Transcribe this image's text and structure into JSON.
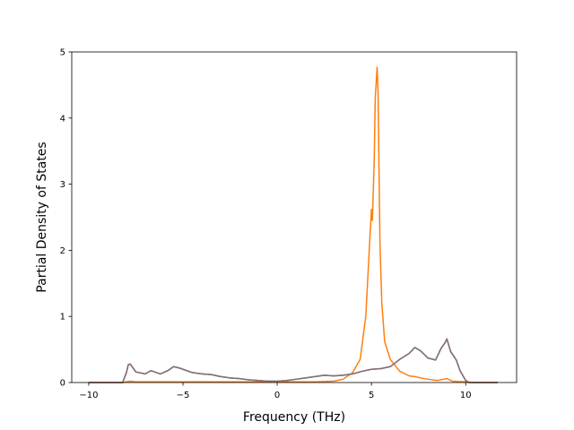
{
  "chart_data": {
    "type": "line",
    "title": "",
    "xlabel": "Frequency (THz)",
    "ylabel": "Partial Density of States",
    "xlim": [
      -10.9,
      12.7
    ],
    "ylim": [
      0,
      5
    ],
    "x_ticks": [
      -10,
      -5,
      0,
      5,
      10
    ],
    "x_tick_labels": [
      "−10",
      "−5",
      "0",
      "5",
      "10"
    ],
    "y_ticks": [
      0,
      1,
      2,
      3,
      4,
      5
    ],
    "y_tick_labels": [
      "0",
      "1",
      "2",
      "3",
      "4",
      "5"
    ],
    "grid": false,
    "legend": "none",
    "series": [
      {
        "color": "#1f77b4",
        "x": [
          -10.0,
          -8.2,
          -8.0,
          -7.9,
          -7.8,
          -7.5,
          -7.0,
          -6.7,
          -6.2,
          -5.8,
          -5.5,
          -5.2,
          -5.0,
          -4.5,
          -4.0,
          -3.5,
          -3.0,
          -2.5,
          -2.0,
          -1.5,
          -1.0,
          -0.5,
          0.0,
          0.5,
          1.0,
          1.5,
          2.0,
          2.5,
          3.0,
          3.5,
          4.0,
          4.5,
          5.0,
          5.5,
          6.0,
          6.5,
          7.0,
          7.3,
          7.6,
          8.0,
          8.4,
          8.7,
          8.9,
          9.0,
          9.2,
          9.5,
          9.7,
          10.0,
          10.2,
          11.7
        ],
        "y": [
          0,
          0,
          0.15,
          0.27,
          0.28,
          0.16,
          0.13,
          0.18,
          0.13,
          0.18,
          0.24,
          0.22,
          0.2,
          0.15,
          0.13,
          0.12,
          0.09,
          0.07,
          0.06,
          0.04,
          0.03,
          0.02,
          0.02,
          0.03,
          0.05,
          0.07,
          0.09,
          0.11,
          0.1,
          0.11,
          0.13,
          0.17,
          0.2,
          0.21,
          0.24,
          0.35,
          0.44,
          0.53,
          0.48,
          0.37,
          0.34,
          0.52,
          0.6,
          0.66,
          0.47,
          0.34,
          0.18,
          0.03,
          0,
          0
        ]
      },
      {
        "color": "#ff7f0e",
        "x": [
          -10.0,
          -8.2,
          -8.0,
          -7.8,
          -7.5,
          -7.0,
          -6.0,
          -5.0,
          -4.0,
          -3.0,
          -2.0,
          -1.0,
          0.0,
          1.0,
          2.0,
          3.0,
          3.5,
          4.0,
          4.4,
          4.7,
          4.9,
          5.0,
          5.05,
          5.15,
          5.2,
          5.3,
          5.35,
          5.45,
          5.55,
          5.7,
          6.0,
          6.5,
          7.0,
          7.3,
          7.6,
          8.0,
          8.5,
          9.0,
          9.3,
          10.0,
          10.2,
          11.7
        ],
        "y": [
          0,
          0,
          0.01,
          0.02,
          0.01,
          0.01,
          0.01,
          0.01,
          0.01,
          0.01,
          0.01,
          0.01,
          0.01,
          0.01,
          0.01,
          0.02,
          0.05,
          0.15,
          0.35,
          1.0,
          2.1,
          2.62,
          2.45,
          3.4,
          4.3,
          4.77,
          4.4,
          2.1,
          1.2,
          0.62,
          0.35,
          0.17,
          0.1,
          0.09,
          0.07,
          0.05,
          0.03,
          0.06,
          0.02,
          0.01,
          0,
          0
        ]
      },
      {
        "color": "#8c6d6e",
        "x": [
          -10.0,
          -8.2,
          -8.0,
          -7.9,
          -7.8,
          -7.5,
          -7.0,
          -6.7,
          -6.2,
          -5.8,
          -5.5,
          -5.2,
          -5.0,
          -4.5,
          -4.0,
          -3.5,
          -3.0,
          -2.5,
          -2.0,
          -1.5,
          -1.0,
          -0.5,
          0.0,
          0.5,
          1.0,
          1.5,
          2.0,
          2.5,
          3.0,
          3.5,
          4.0,
          4.5,
          5.0,
          5.5,
          6.0,
          6.5,
          7.0,
          7.3,
          7.6,
          8.0,
          8.4,
          8.7,
          8.9,
          9.0,
          9.2,
          9.5,
          9.7,
          10.0,
          10.2,
          11.7
        ],
        "y": [
          0,
          0,
          0.15,
          0.27,
          0.28,
          0.16,
          0.13,
          0.18,
          0.13,
          0.18,
          0.24,
          0.22,
          0.2,
          0.15,
          0.13,
          0.12,
          0.09,
          0.07,
          0.06,
          0.04,
          0.03,
          0.02,
          0.02,
          0.03,
          0.05,
          0.07,
          0.09,
          0.11,
          0.1,
          0.11,
          0.13,
          0.17,
          0.2,
          0.21,
          0.24,
          0.35,
          0.44,
          0.53,
          0.48,
          0.37,
          0.34,
          0.52,
          0.6,
          0.66,
          0.47,
          0.34,
          0.18,
          0.03,
          0,
          0
        ]
      }
    ]
  }
}
